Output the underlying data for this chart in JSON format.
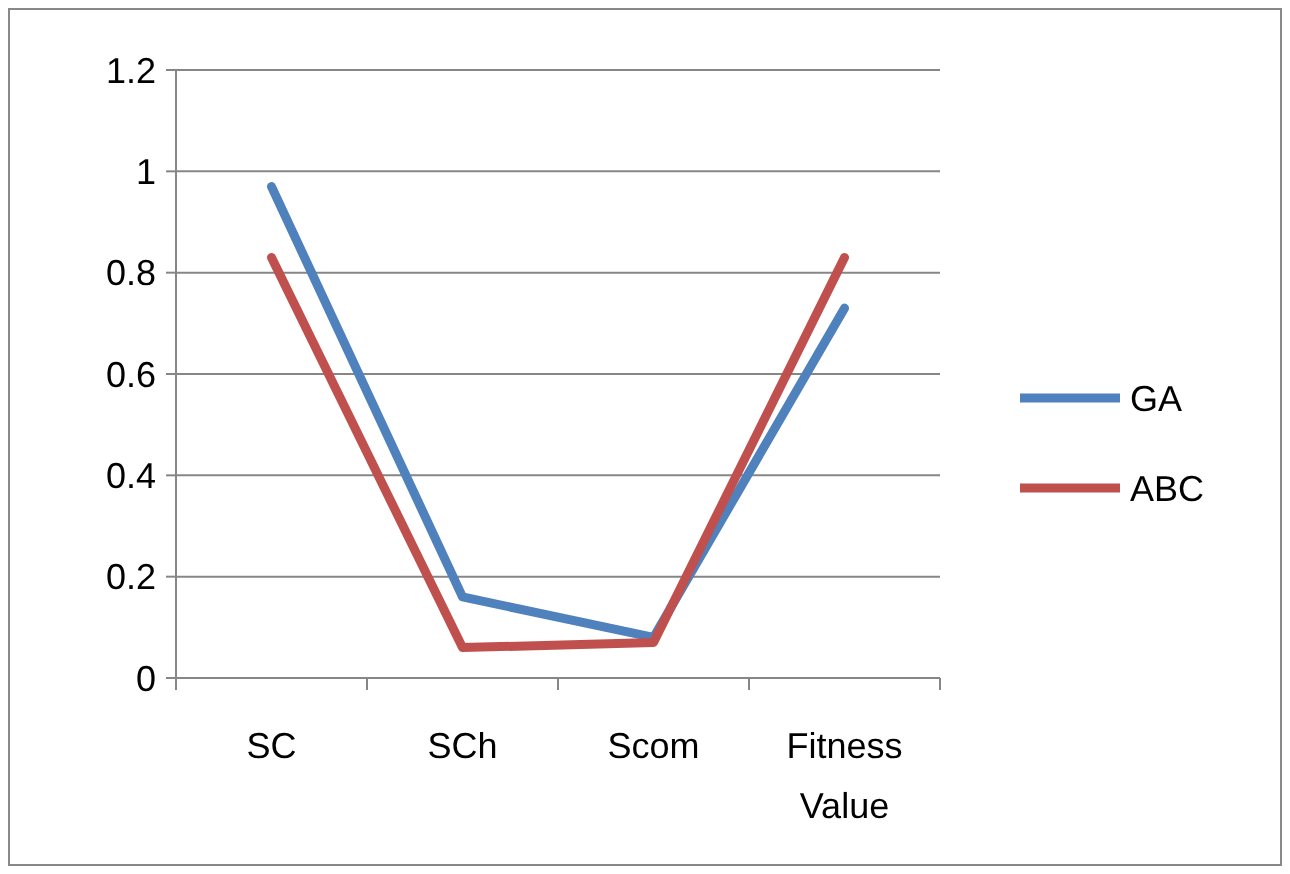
{
  "chart_data": {
    "type": "line",
    "categories": [
      "SC",
      "SCh",
      "Scom",
      "Fitness Value"
    ],
    "series": [
      {
        "name": "GA",
        "color": "#4f81bd",
        "values": [
          0.97,
          0.16,
          0.08,
          0.73
        ]
      },
      {
        "name": "ABC",
        "color": "#c0504d",
        "values": [
          0.83,
          0.06,
          0.07,
          0.83
        ]
      }
    ],
    "ylim": [
      0,
      1.2
    ],
    "yticks": [
      0,
      0.2,
      0.4,
      0.6,
      0.8,
      1,
      1.2
    ],
    "grid": "y",
    "legend": "right",
    "marker": "none",
    "line_style": "solid"
  }
}
